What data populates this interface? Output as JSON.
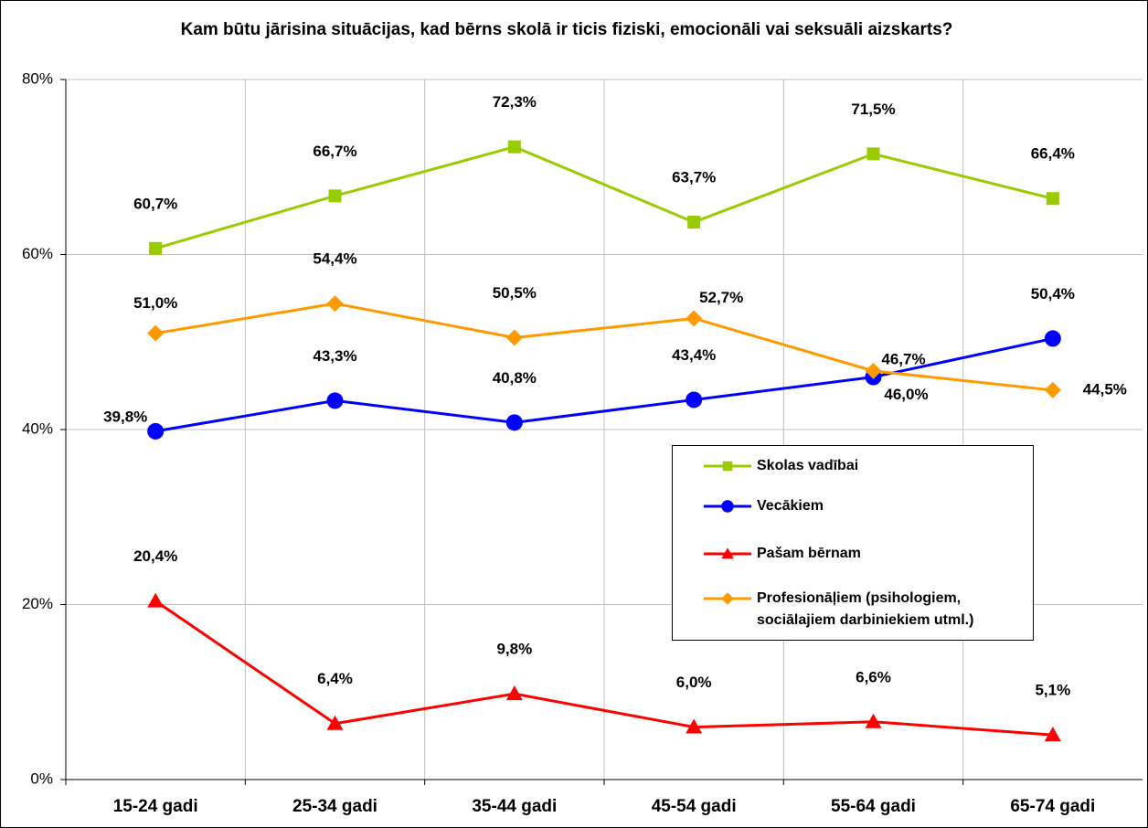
{
  "chart_data": {
    "type": "line",
    "title": "Kam būtu jārisina situācijas, kad bērns skolā ir ticis  fiziski, emocionāli vai seksuāli aizskarts?",
    "categories": [
      "15-24 gadi",
      "25-34 gadi",
      "35-44 gadi",
      "45-54 gadi",
      "55-64 gadi",
      "65-74 gadi"
    ],
    "ylim": [
      0,
      80
    ],
    "yticks": [
      {
        "value": 0,
        "label": "0%"
      },
      {
        "value": 20,
        "label": "20%"
      },
      {
        "value": 40,
        "label": "40%"
      },
      {
        "value": 60,
        "label": "60%"
      },
      {
        "value": 80,
        "label": "80%"
      }
    ],
    "grid": true,
    "legend": "right",
    "series": [
      {
        "name": "Skolas vadībai",
        "color": "#99cc00",
        "marker": "square",
        "values": [
          60.7,
          66.7,
          72.3,
          63.7,
          71.5,
          66.4
        ],
        "value_labels": [
          "60,7%",
          "66,7%",
          "72,3%",
          "63,7%",
          "71,5%",
          "66,4%"
        ]
      },
      {
        "name": "Vecākiem",
        "color": "#0000ff",
        "marker": "circle",
        "values": [
          39.8,
          43.3,
          40.8,
          43.4,
          46.0,
          50.4
        ],
        "value_labels": [
          "39,8%",
          "43,3%",
          "40,8%",
          "43,4%",
          "46,0%",
          "50,4%"
        ]
      },
      {
        "name": "Pašam bērnam",
        "color": "#ff0000",
        "marker": "triangle",
        "values": [
          20.4,
          6.4,
          9.8,
          6.0,
          6.6,
          5.1
        ],
        "value_labels": [
          "20,4%",
          "6,4%",
          "9,8%",
          "6,0%",
          "6,6%",
          "5,1%"
        ]
      },
      {
        "name": "Profesionāļiem (psihologiem, sociālajiem darbiniekiem utml.)",
        "color": "#ff9900",
        "marker": "diamond",
        "values": [
          51.0,
          54.4,
          50.5,
          52.7,
          46.7,
          44.5
        ],
        "value_labels": [
          "51,0%",
          "54,4%",
          "50,5%",
          "52,7%",
          "46,7%",
          "44,5%"
        ]
      }
    ]
  }
}
